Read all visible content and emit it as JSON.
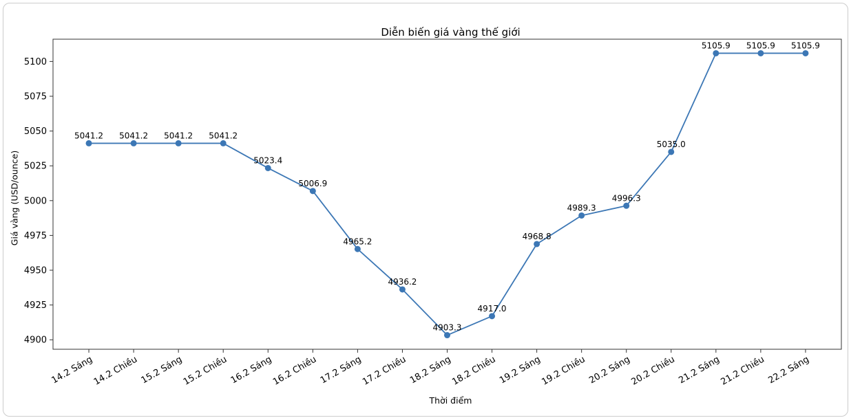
{
  "chart_data": {
    "type": "line",
    "title": "Diễn biến giá vàng thế giới",
    "xlabel": "Thời điểm",
    "ylabel": "Giá vàng (USD/ounce)",
    "categories": [
      "14.2 Sáng",
      "14.2 Chiều",
      "15.2 Sáng",
      "15.2 Chiều",
      "16.2 Sáng",
      "16.2 Chiều",
      "17.2 Sáng",
      "17.2 Chiều",
      "18.2 Sáng",
      "18.2 Chiều",
      "19.2 Sáng",
      "19.2 Chiều",
      "20.2 Sáng",
      "20.2 Chiều",
      "21.2 Sáng",
      "21.2 Chiều",
      "22.2 Sáng"
    ],
    "values": [
      5041.2,
      5041.2,
      5041.2,
      5041.2,
      5023.4,
      5006.9,
      4965.2,
      4936.2,
      4903.3,
      4917.0,
      4968.8,
      4989.3,
      4996.3,
      5035.0,
      5105.9,
      5105.9,
      5105.9
    ],
    "point_labels": [
      "5041.2",
      "5041.2",
      "5041.2",
      "5041.2",
      "5023.4",
      "5006.9",
      "4965.2",
      "4936.2",
      "4903.3",
      "4917.0",
      "4968.8",
      "4989.3",
      "4996.3",
      "5035.0",
      "5105.9",
      "5105.9",
      "5105.9"
    ],
    "yticks": [
      4900,
      4925,
      4950,
      4975,
      5000,
      5025,
      5050,
      5075,
      5100
    ],
    "ylim": [
      4893.2,
      5116.0
    ],
    "xtick_rotation": 30,
    "grid": false,
    "legend": null,
    "colors": {
      "line": "#3c77b5",
      "marker": "#3c77b5",
      "label_text": "#000000",
      "tick_text": "#000000",
      "spine": "#333333",
      "frame_border": "#cccccc",
      "background": "#ffffff"
    }
  }
}
